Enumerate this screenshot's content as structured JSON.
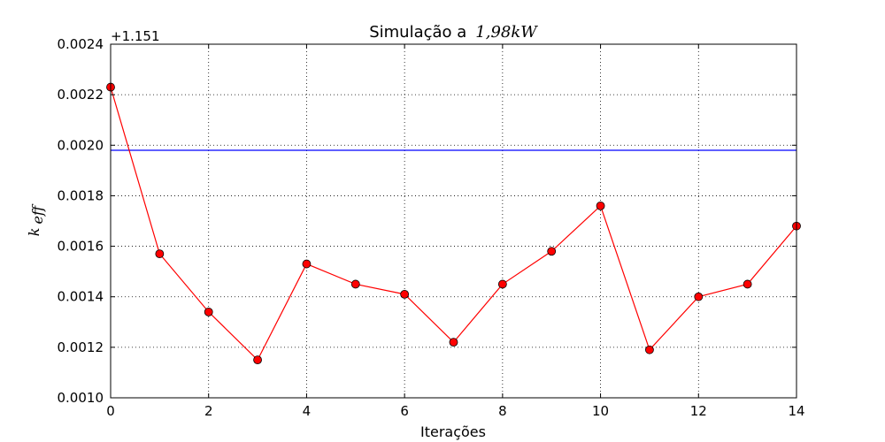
{
  "chart_data": {
    "type": "line",
    "title": "Simulação a",
    "title_math": "1,98kW",
    "xlabel": "Iterações",
    "ylabel": "k",
    "ylabel_sub": "eff",
    "y_offset_text": "+1.151",
    "xlim": [
      0,
      14
    ],
    "ylim": [
      0.001,
      0.0024
    ],
    "x_ticks": [
      0,
      2,
      4,
      6,
      8,
      10,
      12,
      14
    ],
    "x_tick_labels": [
      "0",
      "2",
      "4",
      "6",
      "8",
      "10",
      "12",
      "14"
    ],
    "y_ticks": [
      0.001,
      0.0012,
      0.0014,
      0.0016,
      0.0018,
      0.002,
      0.0022,
      0.0024
    ],
    "y_tick_labels": [
      "0.0010",
      "0.0012",
      "0.0014",
      "0.0016",
      "0.0018",
      "0.0020",
      "0.0022",
      "0.0024"
    ],
    "grid": true,
    "series": [
      {
        "color": "#ff0000",
        "marker": "circle",
        "x": [
          0,
          1,
          2,
          3,
          4,
          5,
          6,
          7,
          8,
          9,
          10,
          11,
          12,
          13,
          14
        ],
        "y": [
          0.00223,
          0.00157,
          0.00134,
          0.00115,
          0.00153,
          0.00145,
          0.00141,
          0.00122,
          0.00145,
          0.00158,
          0.00176,
          0.00119,
          0.0014,
          0.00145,
          0.00168
        ]
      }
    ],
    "reference_line": {
      "y": 0.00198,
      "color": "#0000ff"
    }
  }
}
